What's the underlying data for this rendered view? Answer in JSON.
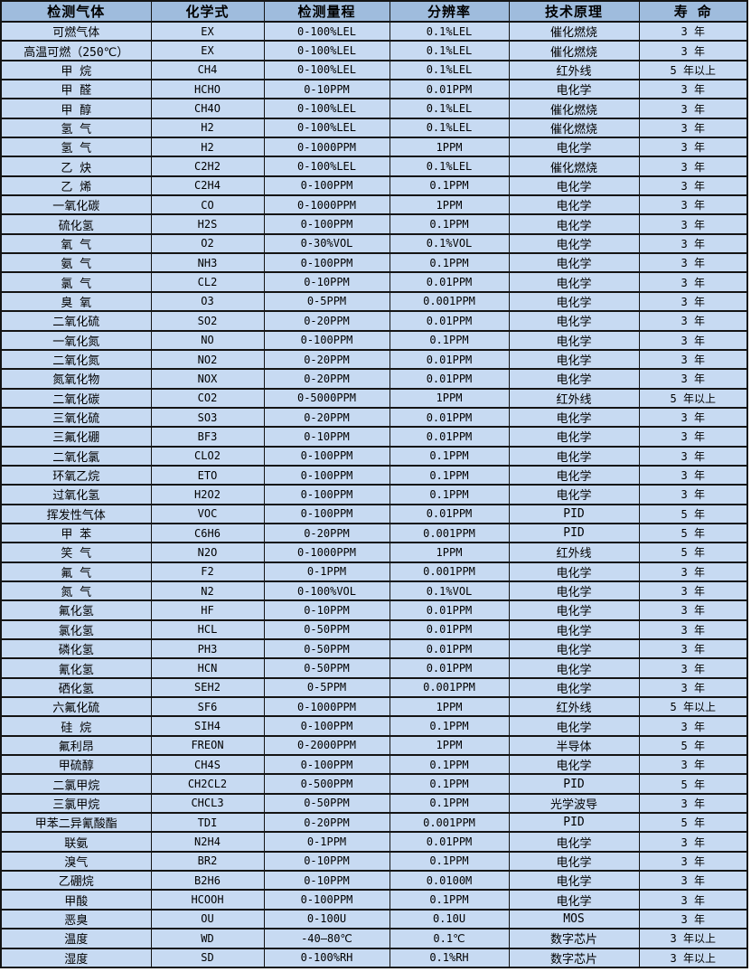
{
  "colors": {
    "header_bg": "#9fbcdd",
    "row_bg": "#c7daf2",
    "border": "#141414",
    "text": "#000000"
  },
  "table": {
    "columns": [
      "检测气体",
      "化学式",
      "检测量程",
      "分辨率",
      "技术原理",
      "寿 命"
    ],
    "rows": [
      [
        "可燃气体",
        "EX",
        "0-100%LEL",
        "0.1%LEL",
        "催化燃烧",
        "3 年"
      ],
      [
        "高温可燃（250℃）",
        "EX",
        "0-100%LEL",
        "0.1%LEL",
        "催化燃烧",
        "3 年"
      ],
      [
        "甲 烷",
        "CH4",
        "0-100%LEL",
        "0.1%LEL",
        "红外线",
        "5 年以上"
      ],
      [
        "甲 醛",
        "HCHO",
        "0-10PPM",
        "0.01PPM",
        "电化学",
        "3 年"
      ],
      [
        "甲 醇",
        "CH4O",
        "0-100%LEL",
        "0.1%LEL",
        "催化燃烧",
        "3 年"
      ],
      [
        "氢 气",
        "H2",
        "0-100%LEL",
        "0.1%LEL",
        "催化燃烧",
        "3 年"
      ],
      [
        "氢 气",
        "H2",
        "0-1000PPM",
        "1PPM",
        "电化学",
        "3 年"
      ],
      [
        "乙 炔",
        "C2H2",
        "0-100%LEL",
        "0.1%LEL",
        "催化燃烧",
        "3 年"
      ],
      [
        "乙 烯",
        "C2H4",
        "0-100PPM",
        "0.1PPM",
        "电化学",
        "3 年"
      ],
      [
        "一氧化碳",
        "CO",
        "0-1000PPM",
        "1PPM",
        "电化学",
        "3 年"
      ],
      [
        "硫化氢",
        "H2S",
        "0-100PPM",
        "0.1PPM",
        "电化学",
        "3 年"
      ],
      [
        "氧 气",
        "O2",
        "0-30%VOL",
        "0.1%VOL",
        "电化学",
        "3 年"
      ],
      [
        "氨 气",
        "NH3",
        "0-100PPM",
        "0.1PPM",
        "电化学",
        "3 年"
      ],
      [
        "氯 气",
        "CL2",
        "0-10PPM",
        "0.01PPM",
        "电化学",
        "3 年"
      ],
      [
        "臭 氧",
        "O3",
        "0-5PPM",
        "0.001PPM",
        "电化学",
        "3 年"
      ],
      [
        "二氧化硫",
        "SO2",
        "0-20PPM",
        "0.01PPM",
        "电化学",
        "3 年"
      ],
      [
        "一氧化氮",
        "NO",
        "0-100PPM",
        "0.1PPM",
        "电化学",
        "3 年"
      ],
      [
        "二氧化氮",
        "NO2",
        "0-20PPM",
        "0.01PPM",
        "电化学",
        "3 年"
      ],
      [
        "氮氧化物",
        "NOX",
        "0-20PPM",
        "0.01PPM",
        "电化学",
        "3 年"
      ],
      [
        "二氧化碳",
        "CO2",
        "0-5000PPM",
        "1PPM",
        "红外线",
        "5 年以上"
      ],
      [
        "三氧化硫",
        "SO3",
        "0-20PPM",
        "0.01PPM",
        "电化学",
        "3 年"
      ],
      [
        "三氟化硼",
        "BF3",
        "0-10PPM",
        "0.01PPM",
        "电化学",
        "3 年"
      ],
      [
        "二氧化氯",
        "CLO2",
        "0-100PPM",
        "0.1PPM",
        "电化学",
        "3 年"
      ],
      [
        "环氧乙烷",
        "ETO",
        "0-100PPM",
        "0.1PPM",
        "电化学",
        "3 年"
      ],
      [
        "过氧化氢",
        "H2O2",
        "0-100PPM",
        "0.1PPM",
        "电化学",
        "3 年"
      ],
      [
        "挥发性气体",
        "VOC",
        "0-100PPM",
        "0.01PPM",
        "PID",
        "5 年"
      ],
      [
        "甲 苯",
        "C6H6",
        "0-20PPM",
        "0.001PPM",
        "PID",
        "5 年"
      ],
      [
        "笑 气",
        "N2O",
        "0-1000PPM",
        "1PPM",
        "红外线",
        "5 年"
      ],
      [
        "氟 气",
        "F2",
        "0-1PPM",
        "0.001PPM",
        "电化学",
        "3 年"
      ],
      [
        "氮 气",
        "N2",
        "0-100%VOL",
        "0.1%VOL",
        "电化学",
        "3 年"
      ],
      [
        "氟化氢",
        "HF",
        "0-10PPM",
        "0.01PPM",
        "电化学",
        "3 年"
      ],
      [
        "氯化氢",
        "HCL",
        "0-50PPM",
        "0.01PPM",
        "电化学",
        "3 年"
      ],
      [
        "磷化氢",
        "PH3",
        "0-50PPM",
        "0.01PPM",
        "电化学",
        "3 年"
      ],
      [
        "氰化氢",
        "HCN",
        "0-50PPM",
        "0.01PPM",
        "电化学",
        "3 年"
      ],
      [
        "硒化氢",
        "SEH2",
        "0-5PPM",
        "0.001PPM",
        "电化学",
        "3 年"
      ],
      [
        "六氟化硫",
        "SF6",
        "0-1000PPM",
        "1PPM",
        "红外线",
        "5 年以上"
      ],
      [
        "硅 烷",
        "SIH4",
        "0-100PPM",
        "0.1PPM",
        "电化学",
        "3 年"
      ],
      [
        "氟利昂",
        "FREON",
        "0-2000PPM",
        "1PPM",
        "半导体",
        "5 年"
      ],
      [
        "甲硫醇",
        "CH4S",
        "0-100PPM",
        "0.1PPM",
        "电化学",
        "3 年"
      ],
      [
        "二氯甲烷",
        "CH2CL2",
        "0-500PPM",
        "0.1PPM",
        "PID",
        "5 年"
      ],
      [
        "三氯甲烷",
        "CHCL3",
        "0-50PPM",
        "0.1PPM",
        "光学波导",
        "3 年"
      ],
      [
        "甲苯二异氰酸酯",
        "TDI",
        "0-20PPM",
        "0.001PPM",
        "PID",
        "5 年"
      ],
      [
        "联氨",
        "N2H4",
        "0-1PPM",
        "0.01PPM",
        "电化学",
        "3 年"
      ],
      [
        "溴气",
        "BR2",
        "0-10PPM",
        "0.1PPM",
        "电化学",
        "3 年"
      ],
      [
        "乙硼烷",
        "B2H6",
        "0-10PPM",
        "0.0100M",
        "电化学",
        "3 年"
      ],
      [
        "甲酸",
        "HCOOH",
        "0-100PPM",
        "0.1PPM",
        "电化学",
        "3 年"
      ],
      [
        "恶臭",
        "OU",
        "0-100U",
        "0.10U",
        "MOS",
        "3 年"
      ],
      [
        "温度",
        "WD",
        "-40—80℃",
        "0.1℃",
        "数字芯片",
        "3 年以上"
      ],
      [
        "湿度",
        "SD",
        "0-100%RH",
        "0.1%RH",
        "数字芯片",
        "3 年以上"
      ]
    ]
  }
}
